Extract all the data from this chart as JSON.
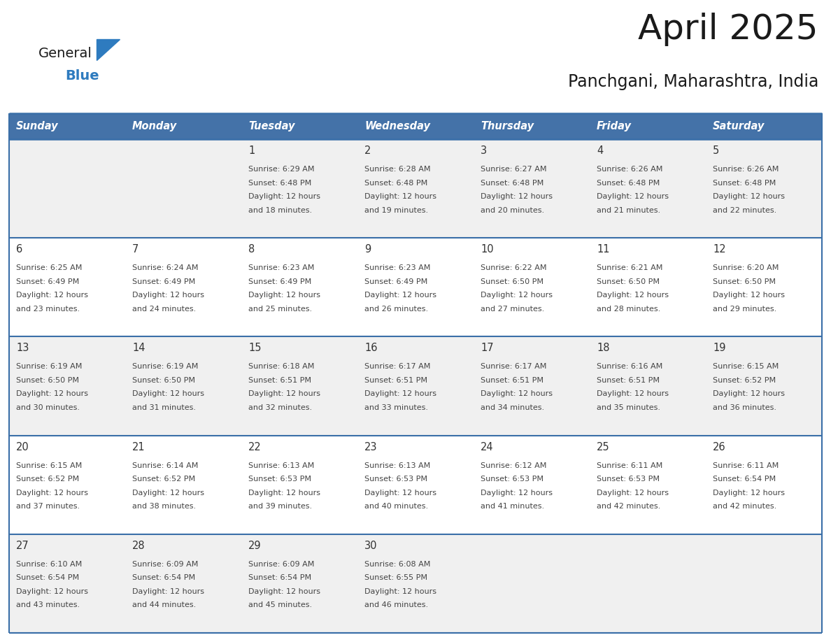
{
  "title": "April 2025",
  "subtitle": "Panchgani, Maharashtra, India",
  "days_of_week": [
    "Sunday",
    "Monday",
    "Tuesday",
    "Wednesday",
    "Thursday",
    "Friday",
    "Saturday"
  ],
  "header_bg_color": "#4472a8",
  "header_text_color": "#ffffff",
  "row_bg_colors": [
    "#f0f0f0",
    "#ffffff",
    "#f0f0f0",
    "#ffffff",
    "#f0f0f0"
  ],
  "border_color": "#3a6fa8",
  "day_number_color": "#333333",
  "cell_text_color": "#444444",
  "title_color": "#1a1a1a",
  "subtitle_color": "#1a1a1a",
  "logo_general_color": "#1a1a1a",
  "logo_blue_color": "#2e7bbf",
  "weeks": [
    {
      "days": [
        {
          "date": "",
          "sunrise": "",
          "sunset": "",
          "daylight_hours": "",
          "daylight_mins": ""
        },
        {
          "date": "",
          "sunrise": "",
          "sunset": "",
          "daylight_hours": "",
          "daylight_mins": ""
        },
        {
          "date": "1",
          "sunrise": "6:29 AM",
          "sunset": "6:48 PM",
          "daylight_hours": "12",
          "daylight_mins": "18"
        },
        {
          "date": "2",
          "sunrise": "6:28 AM",
          "sunset": "6:48 PM",
          "daylight_hours": "12",
          "daylight_mins": "19"
        },
        {
          "date": "3",
          "sunrise": "6:27 AM",
          "sunset": "6:48 PM",
          "daylight_hours": "12",
          "daylight_mins": "20"
        },
        {
          "date": "4",
          "sunrise": "6:26 AM",
          "sunset": "6:48 PM",
          "daylight_hours": "12",
          "daylight_mins": "21"
        },
        {
          "date": "5",
          "sunrise": "6:26 AM",
          "sunset": "6:48 PM",
          "daylight_hours": "12",
          "daylight_mins": "22"
        }
      ]
    },
    {
      "days": [
        {
          "date": "6",
          "sunrise": "6:25 AM",
          "sunset": "6:49 PM",
          "daylight_hours": "12",
          "daylight_mins": "23"
        },
        {
          "date": "7",
          "sunrise": "6:24 AM",
          "sunset": "6:49 PM",
          "daylight_hours": "12",
          "daylight_mins": "24"
        },
        {
          "date": "8",
          "sunrise": "6:23 AM",
          "sunset": "6:49 PM",
          "daylight_hours": "12",
          "daylight_mins": "25"
        },
        {
          "date": "9",
          "sunrise": "6:23 AM",
          "sunset": "6:49 PM",
          "daylight_hours": "12",
          "daylight_mins": "26"
        },
        {
          "date": "10",
          "sunrise": "6:22 AM",
          "sunset": "6:50 PM",
          "daylight_hours": "12",
          "daylight_mins": "27"
        },
        {
          "date": "11",
          "sunrise": "6:21 AM",
          "sunset": "6:50 PM",
          "daylight_hours": "12",
          "daylight_mins": "28"
        },
        {
          "date": "12",
          "sunrise": "6:20 AM",
          "sunset": "6:50 PM",
          "daylight_hours": "12",
          "daylight_mins": "29"
        }
      ]
    },
    {
      "days": [
        {
          "date": "13",
          "sunrise": "6:19 AM",
          "sunset": "6:50 PM",
          "daylight_hours": "12",
          "daylight_mins": "30"
        },
        {
          "date": "14",
          "sunrise": "6:19 AM",
          "sunset": "6:50 PM",
          "daylight_hours": "12",
          "daylight_mins": "31"
        },
        {
          "date": "15",
          "sunrise": "6:18 AM",
          "sunset": "6:51 PM",
          "daylight_hours": "12",
          "daylight_mins": "32"
        },
        {
          "date": "16",
          "sunrise": "6:17 AM",
          "sunset": "6:51 PM",
          "daylight_hours": "12",
          "daylight_mins": "33"
        },
        {
          "date": "17",
          "sunrise": "6:17 AM",
          "sunset": "6:51 PM",
          "daylight_hours": "12",
          "daylight_mins": "34"
        },
        {
          "date": "18",
          "sunrise": "6:16 AM",
          "sunset": "6:51 PM",
          "daylight_hours": "12",
          "daylight_mins": "35"
        },
        {
          "date": "19",
          "sunrise": "6:15 AM",
          "sunset": "6:52 PM",
          "daylight_hours": "12",
          "daylight_mins": "36"
        }
      ]
    },
    {
      "days": [
        {
          "date": "20",
          "sunrise": "6:15 AM",
          "sunset": "6:52 PM",
          "daylight_hours": "12",
          "daylight_mins": "37"
        },
        {
          "date": "21",
          "sunrise": "6:14 AM",
          "sunset": "6:52 PM",
          "daylight_hours": "12",
          "daylight_mins": "38"
        },
        {
          "date": "22",
          "sunrise": "6:13 AM",
          "sunset": "6:53 PM",
          "daylight_hours": "12",
          "daylight_mins": "39"
        },
        {
          "date": "23",
          "sunrise": "6:13 AM",
          "sunset": "6:53 PM",
          "daylight_hours": "12",
          "daylight_mins": "40"
        },
        {
          "date": "24",
          "sunrise": "6:12 AM",
          "sunset": "6:53 PM",
          "daylight_hours": "12",
          "daylight_mins": "41"
        },
        {
          "date": "25",
          "sunrise": "6:11 AM",
          "sunset": "6:53 PM",
          "daylight_hours": "12",
          "daylight_mins": "42"
        },
        {
          "date": "26",
          "sunrise": "6:11 AM",
          "sunset": "6:54 PM",
          "daylight_hours": "12",
          "daylight_mins": "42"
        }
      ]
    },
    {
      "days": [
        {
          "date": "27",
          "sunrise": "6:10 AM",
          "sunset": "6:54 PM",
          "daylight_hours": "12",
          "daylight_mins": "43"
        },
        {
          "date": "28",
          "sunrise": "6:09 AM",
          "sunset": "6:54 PM",
          "daylight_hours": "12",
          "daylight_mins": "44"
        },
        {
          "date": "29",
          "sunrise": "6:09 AM",
          "sunset": "6:54 PM",
          "daylight_hours": "12",
          "daylight_mins": "45"
        },
        {
          "date": "30",
          "sunrise": "6:08 AM",
          "sunset": "6:55 PM",
          "daylight_hours": "12",
          "daylight_mins": "46"
        },
        {
          "date": "",
          "sunrise": "",
          "sunset": "",
          "daylight_hours": "",
          "daylight_mins": ""
        },
        {
          "date": "",
          "sunrise": "",
          "sunset": "",
          "daylight_hours": "",
          "daylight_mins": ""
        },
        {
          "date": "",
          "sunrise": "",
          "sunset": "",
          "daylight_hours": "",
          "daylight_mins": ""
        }
      ]
    }
  ]
}
